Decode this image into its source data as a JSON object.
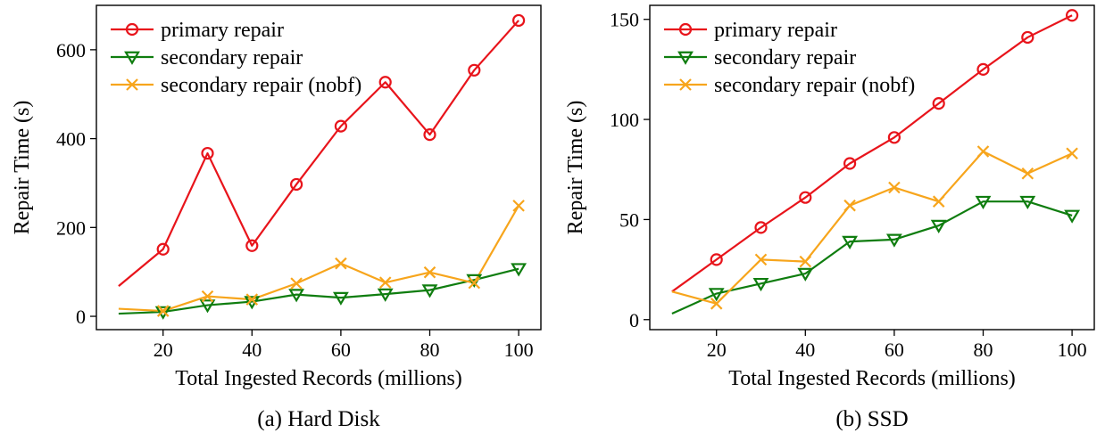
{
  "chart_data": [
    {
      "type": "line",
      "caption": "(a) Hard Disk",
      "xlabel": "Total Ingested Records (millions)",
      "ylabel": "Repair Time (s)",
      "xlim": [
        5,
        105
      ],
      "ylim": [
        -30,
        700
      ],
      "xticks": [
        20,
        40,
        60,
        80,
        100
      ],
      "yticks": [
        0,
        200,
        400,
        600
      ],
      "legend_position": "top-left",
      "x": [
        10,
        20,
        30,
        40,
        50,
        60,
        70,
        80,
        90,
        100
      ],
      "series": [
        {
          "name": "primary repair",
          "color": "#e8141b",
          "marker": "circle",
          "values": [
            68,
            151,
            367,
            159,
            297,
            428,
            527,
            409,
            554,
            666
          ]
        },
        {
          "name": "secondary repair",
          "color": "#0f7d0f",
          "marker": "triangle-down",
          "values": [
            6,
            10,
            25,
            33,
            49,
            42,
            50,
            59,
            82,
            107
          ]
        },
        {
          "name": "secondary repair (nobf)",
          "color": "#f7a51c",
          "marker": "x",
          "values": [
            17,
            12,
            45,
            38,
            74,
            119,
            76,
            99,
            75,
            249
          ]
        }
      ]
    },
    {
      "type": "line",
      "caption": "(b) SSD",
      "xlabel": "Total Ingested Records (millions)",
      "ylabel": "Repair Time (s)",
      "xlim": [
        5,
        105
      ],
      "ylim": [
        -5,
        157
      ],
      "xticks": [
        20,
        40,
        60,
        80,
        100
      ],
      "yticks": [
        0,
        50,
        100,
        150
      ],
      "legend_position": "top-left",
      "x": [
        10,
        20,
        30,
        40,
        50,
        60,
        70,
        80,
        90,
        100
      ],
      "series": [
        {
          "name": "primary repair",
          "color": "#e8141b",
          "marker": "circle",
          "values": [
            14,
            30,
            46,
            61,
            78,
            91,
            108,
            125,
            141,
            152
          ]
        },
        {
          "name": "secondary repair",
          "color": "#0f7d0f",
          "marker": "triangle-down",
          "values": [
            3,
            13,
            18,
            23,
            39,
            40,
            47,
            59,
            59,
            52
          ]
        },
        {
          "name": "secondary repair (nobf)",
          "color": "#f7a51c",
          "marker": "x",
          "values": [
            14,
            8,
            30,
            29,
            57,
            66,
            59,
            84,
            73,
            83
          ]
        }
      ]
    }
  ]
}
